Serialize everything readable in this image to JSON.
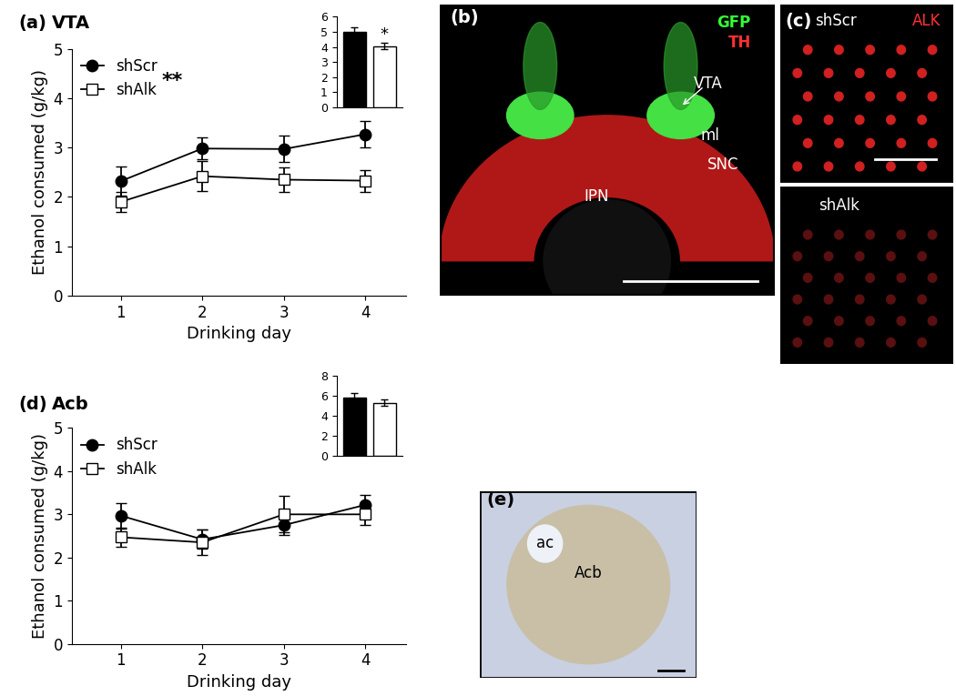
{
  "chart_data": [
    {
      "type": "line",
      "panel": "(a)",
      "title": "VTA",
      "x_label": "Drinking day",
      "y_label": "Ethanol consumed (g/kg)",
      "x": [
        1,
        2,
        3,
        4
      ],
      "xlim": [
        0.4,
        4.5
      ],
      "xticks": [
        1,
        2,
        3,
        4
      ],
      "ylim": [
        0,
        5
      ],
      "yticks": [
        0,
        1,
        2,
        3,
        4,
        5
      ],
      "legend": "upper left",
      "annotations": [
        "**"
      ],
      "series": [
        {
          "name": "shScr",
          "color": "#000000",
          "marker": "circle",
          "values": [
            2.32,
            2.98,
            2.97,
            3.27
          ],
          "errors": [
            0.3,
            0.22,
            0.27,
            0.27
          ]
        },
        {
          "name": "shAlk",
          "color": "#000000",
          "marker": "square",
          "values": [
            1.9,
            2.42,
            2.35,
            2.33
          ],
          "errors": [
            0.2,
            0.3,
            0.25,
            0.22
          ]
        }
      ]
    },
    {
      "type": "bar",
      "categories": [
        null,
        null
      ],
      "values": [
        5.0,
        4.05
      ],
      "errors": [
        0.28,
        0.22
      ],
      "colors": [
        "#000000",
        "#ffffff"
      ],
      "ylim": [
        0,
        6
      ],
      "yticks": [
        0,
        1,
        2,
        3,
        4,
        5,
        6
      ],
      "tick_labels": "y",
      "annotations": [
        "*"
      ]
    },
    {
      "type": "line",
      "panel": "(d)",
      "title": "Acb",
      "x_label": "Drinking day",
      "y_label": "Ethanol consumed (g/kg)",
      "x": [
        1,
        2,
        3,
        4
      ],
      "xlim": [
        0.4,
        4.5
      ],
      "xticks": [
        1,
        2,
        3,
        4
      ],
      "ylim": [
        0,
        5
      ],
      "yticks": [
        0,
        1,
        2,
        3,
        4,
        5
      ],
      "legend": "upper left",
      "series": [
        {
          "name": "shScr",
          "color": "#000000",
          "marker": "circle",
          "values": [
            2.97,
            2.42,
            2.75,
            3.22
          ],
          "errors": [
            0.3,
            0.22,
            0.22,
            0.22
          ]
        },
        {
          "name": "shAlk",
          "color": "#000000",
          "marker": "square",
          "values": [
            2.47,
            2.35,
            3.0,
            3.0
          ],
          "errors": [
            0.22,
            0.3,
            0.42,
            0.25
          ]
        }
      ]
    },
    {
      "type": "bar",
      "categories": [
        null,
        null
      ],
      "values": [
        5.8,
        5.3
      ],
      "errors": [
        0.45,
        0.3
      ],
      "colors": [
        "#000000",
        "#ffffff"
      ],
      "ylim": [
        0,
        8
      ],
      "yticks": [
        0,
        2,
        4,
        6,
        8
      ],
      "tick_labels": "y"
    }
  ],
  "images": [
    {
      "panel": "(b)",
      "labels": [
        {
          "text": "GFP",
          "color": "#33ff33"
        },
        {
          "text": "TH",
          "color": "#ff3030"
        },
        {
          "text": "VTA",
          "color": "#ffffff"
        },
        {
          "text": "ml",
          "color": "#ffffff"
        },
        {
          "text": "SNC",
          "color": "#ffffff"
        },
        {
          "text": "IPN",
          "color": "#ffffff"
        }
      ]
    },
    {
      "panel": "(c)",
      "labels": [
        {
          "text": "shScr",
          "color": "#ffffff"
        },
        {
          "text": "ALK",
          "color": "#ff3030"
        },
        {
          "text": "shAlk",
          "color": "#ffffff"
        }
      ]
    },
    {
      "panel": "(e)",
      "labels": [
        {
          "text": "ac",
          "color": "#000000"
        },
        {
          "text": "Acb",
          "color": "#000000"
        }
      ]
    }
  ]
}
